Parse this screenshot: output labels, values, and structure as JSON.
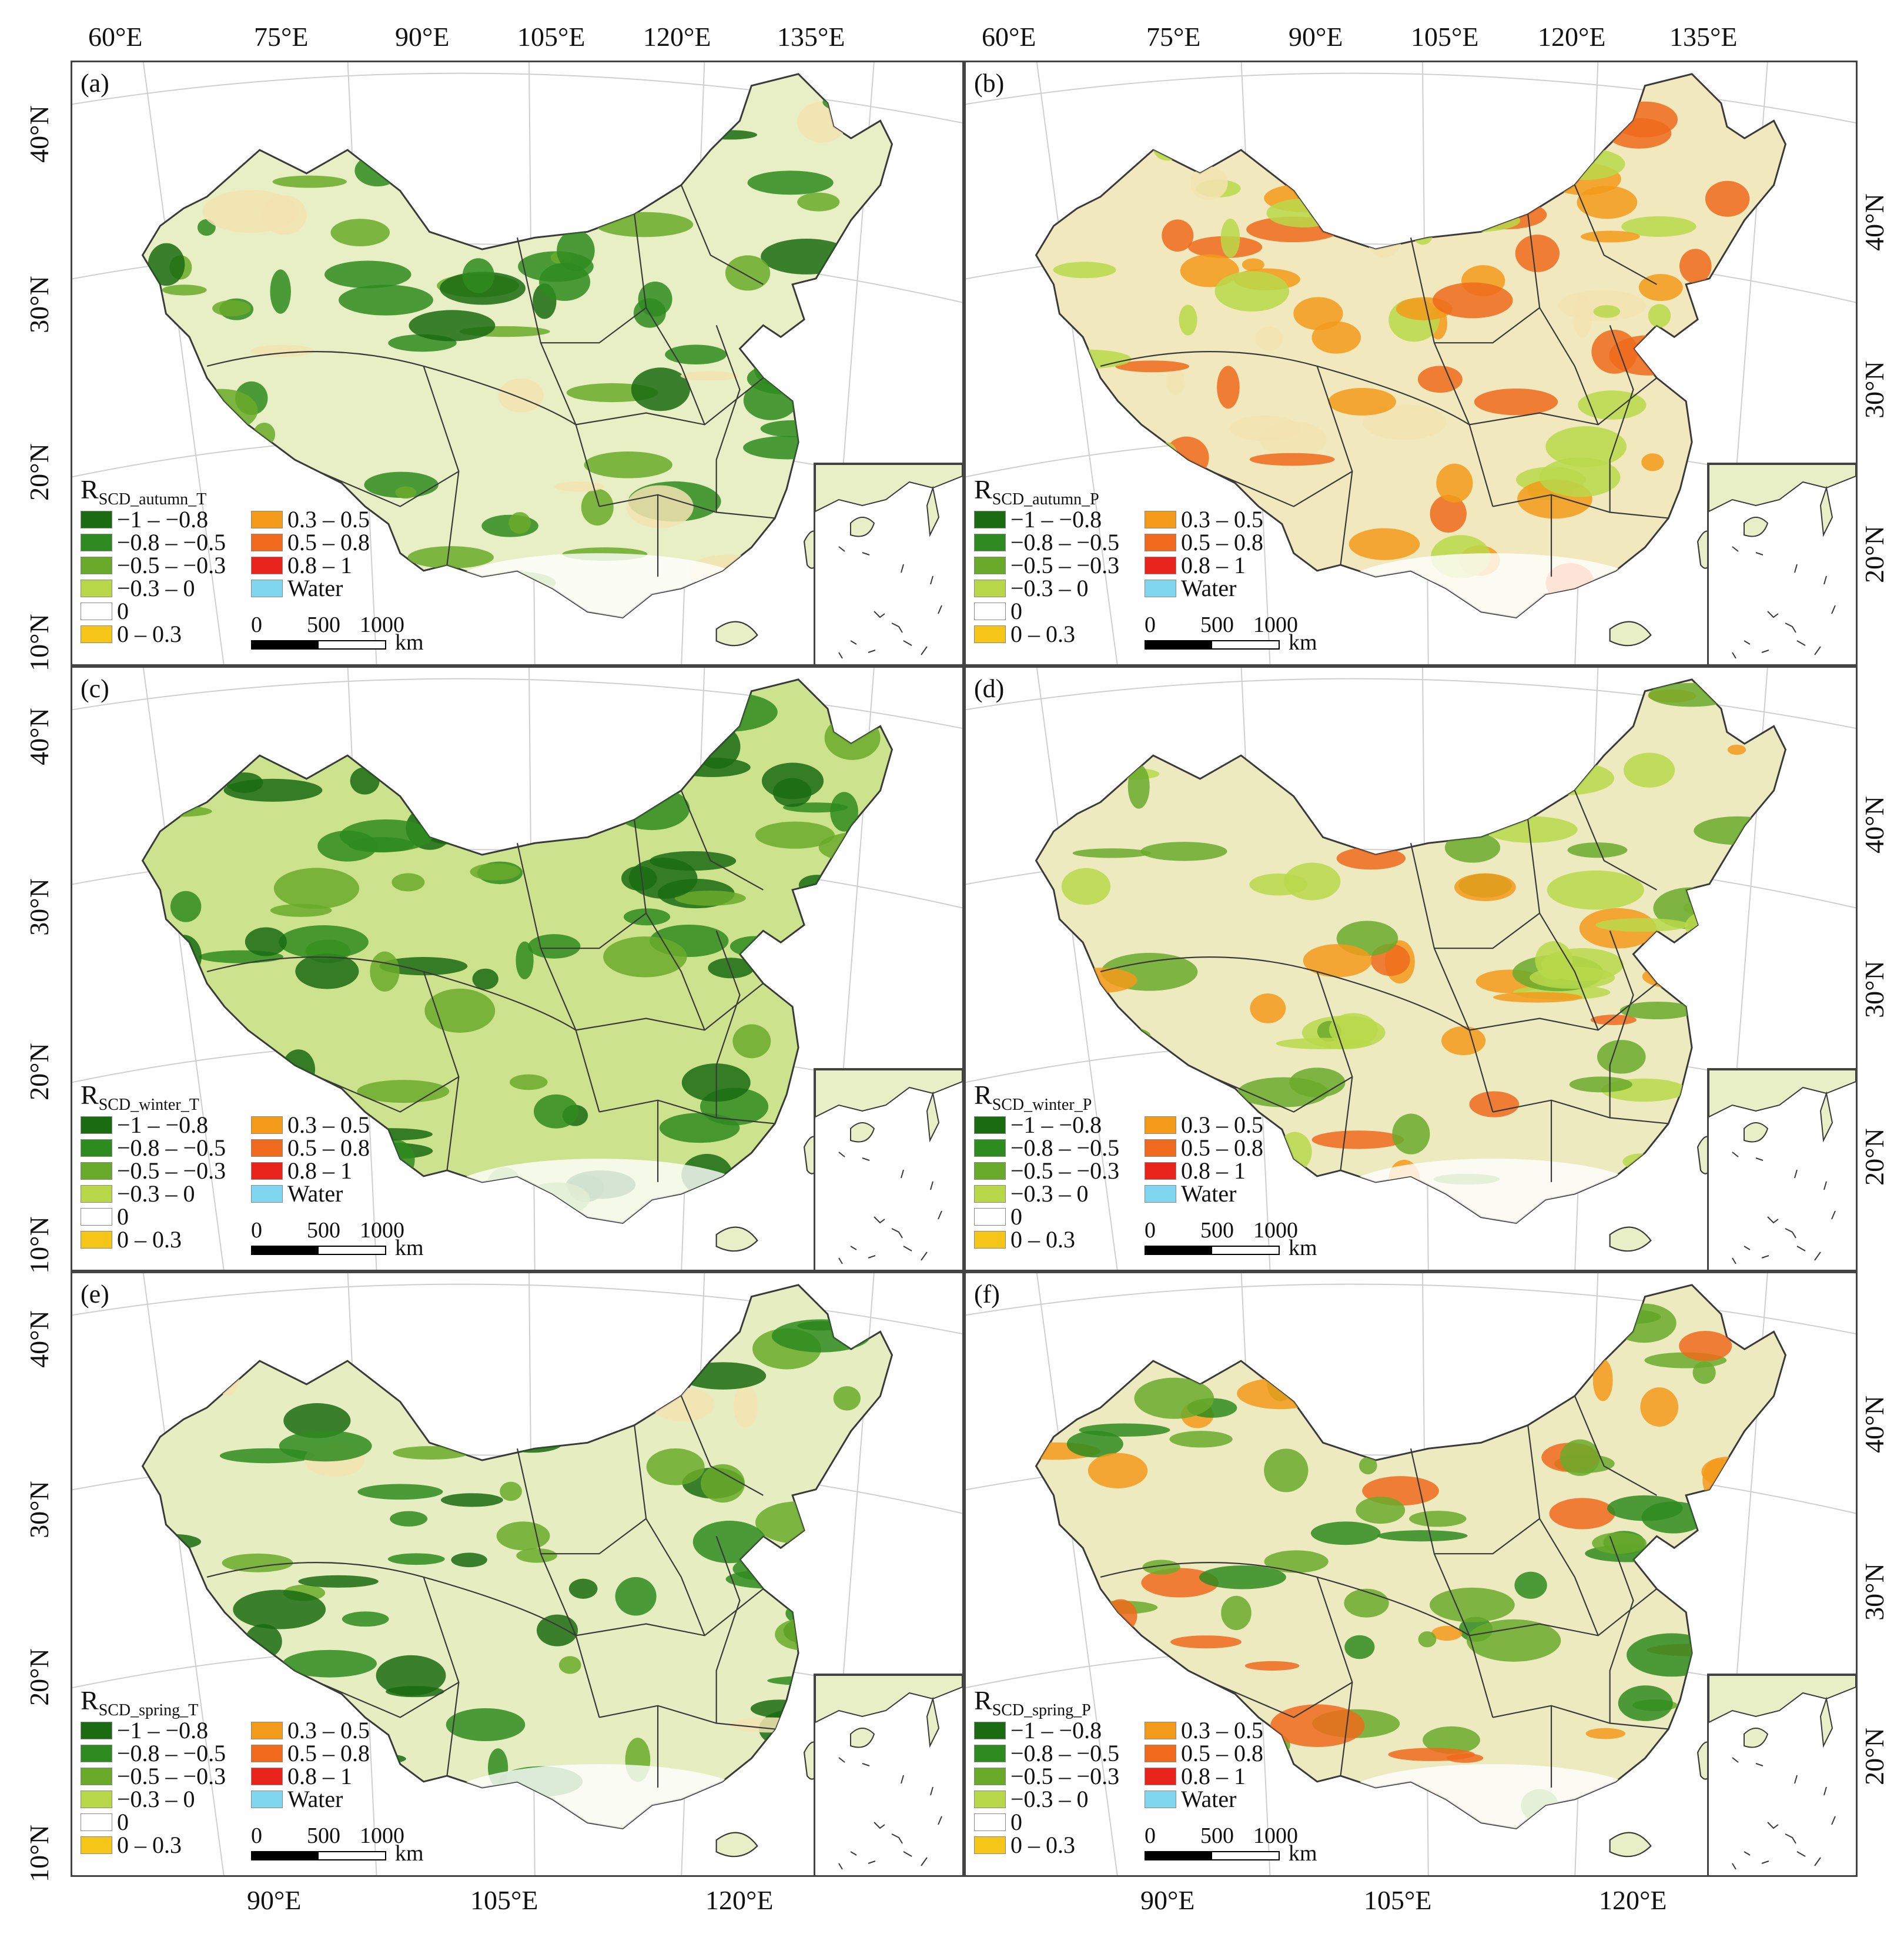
{
  "top_longitude_labels_left": [
    "60°E",
    "75°E",
    "90°E",
    "105°E",
    "120°E",
    "135°E"
  ],
  "top_longitude_labels_right": [
    "60°E",
    "75°E",
    "90°E",
    "105°E",
    "120°E",
    "135°E"
  ],
  "bottom_longitude_labels_left": [
    "90°E",
    "105°E",
    "120°E"
  ],
  "bottom_longitude_labels_right": [
    "90°E",
    "105°E",
    "120°E"
  ],
  "left_latitude_labels": {
    "row1": [
      "40°N",
      "30°N",
      "20°N",
      "10°N"
    ],
    "row2": [
      "40°N",
      "30°N",
      "20°N",
      "10°N"
    ],
    "row3": [
      "40°N",
      "30°N",
      "20°N",
      "10°N"
    ]
  },
  "right_latitude_labels": {
    "row1": [
      "40°N",
      "30°N",
      "20°N"
    ],
    "row2": [
      "40°N",
      "30°N",
      "20°N"
    ],
    "row3": [
      "40°N",
      "30°N",
      "20°N"
    ]
  },
  "panels": [
    {
      "label": "(a)",
      "title_main": "R",
      "title_sub": "SCD_autumn_T"
    },
    {
      "label": "(b)",
      "title_main": "R",
      "title_sub": "SCD_autumn_P"
    },
    {
      "label": "(c)",
      "title_main": "R",
      "title_sub": "SCD_winter_T"
    },
    {
      "label": "(d)",
      "title_main": "R",
      "title_sub": "SCD_winter_P"
    },
    {
      "label": "(e)",
      "title_main": "R",
      "title_sub": "SCD_spring_T"
    },
    {
      "label": "(f)",
      "title_main": "R",
      "title_sub": "SCD_spring_P"
    }
  ],
  "legend": {
    "left_column": [
      {
        "label": "−1 – −0.8",
        "color": "#1a6b12"
      },
      {
        "label": "−0.8 – −0.5",
        "color": "#2e8b1f"
      },
      {
        "label": "−0.5 – −0.3",
        "color": "#6aaa2a"
      },
      {
        "label": "−0.3 – 0",
        "color": "#b8d84a"
      },
      {
        "label": "0",
        "color": "#ffffff"
      },
      {
        "label": "0 – 0.3",
        "color": "#f5c518"
      }
    ],
    "right_column": [
      {
        "label": "0.3 – 0.5",
        "color": "#f39a1a"
      },
      {
        "label": "0.5 – 0.8",
        "color": "#ef6a1c"
      },
      {
        "label": "0.8 – 1",
        "color": "#e8231c"
      },
      {
        "label": "Water",
        "color": "#7fd6ee"
      }
    ],
    "scalebar": {
      "ticks": [
        "0",
        "500",
        "1000"
      ],
      "unit": "km"
    }
  },
  "map_colors": {
    "base_light": "#e9efc4",
    "base_tan": "#f3e3b2",
    "boundary": "#3a3a3a"
  }
}
